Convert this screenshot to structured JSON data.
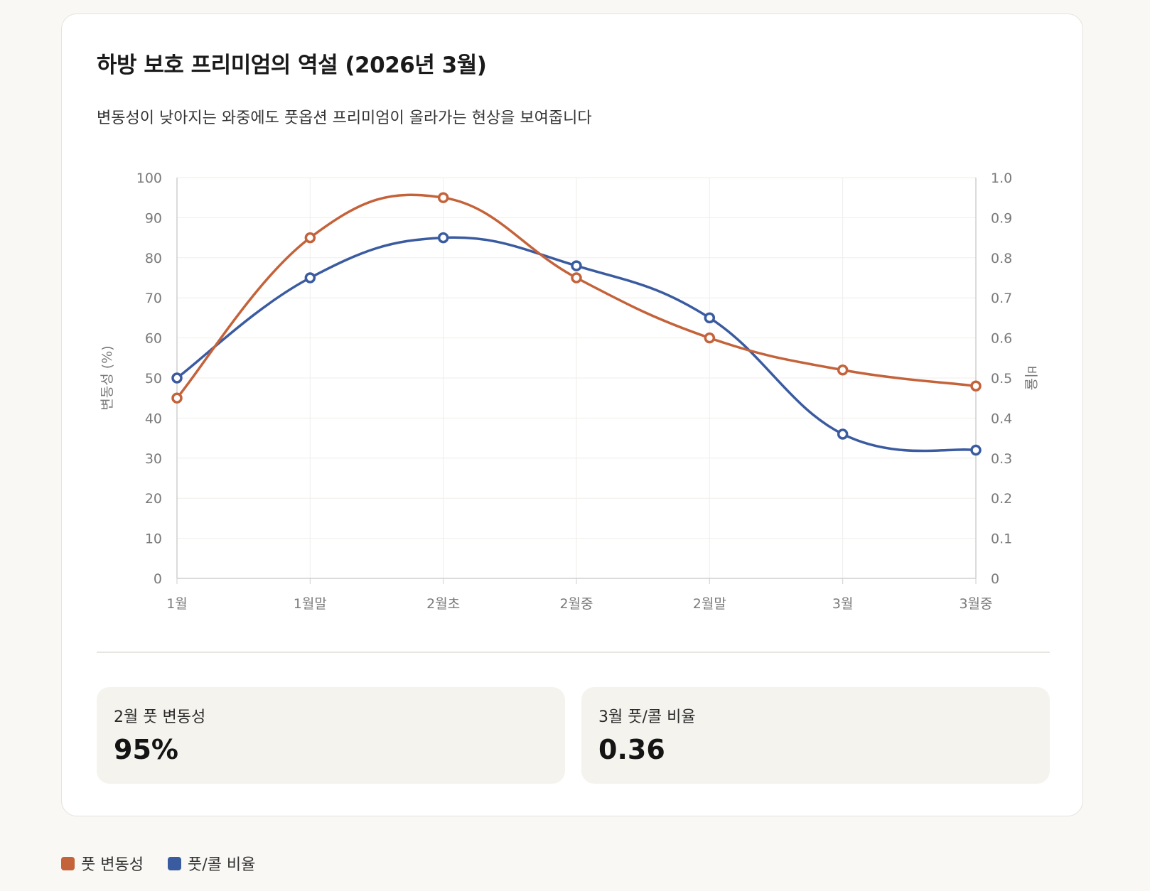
{
  "card": {
    "title": "하방 보호 프리미엄의 역설 (2026년 3월)",
    "subtitle": "변동성이 낮아지는 와중에도 풋옵션 프리미엄이 올라가는 현상을 보여줍니다"
  },
  "chart_data": {
    "type": "line",
    "categories": [
      "1월",
      "1월말",
      "2월초",
      "2월중",
      "2월말",
      "3월",
      "3월중"
    ],
    "series": [
      {
        "name": "풋 변동성",
        "axis": "left",
        "color": "#c4623a",
        "values": [
          45,
          85,
          95,
          75,
          60,
          52,
          48
        ]
      },
      {
        "name": "풋/콜 비율",
        "axis": "right",
        "color": "#3a5ba0",
        "values": [
          0.5,
          0.75,
          0.85,
          0.78,
          0.65,
          0.36,
          0.32
        ]
      }
    ],
    "y_left": {
      "label": "변동성 (%)",
      "ylim": [
        0,
        100
      ],
      "ticks": [
        "0",
        "10",
        "20",
        "30",
        "40",
        "50",
        "60",
        "70",
        "80",
        "90",
        "100"
      ]
    },
    "y_right": {
      "label": "비율",
      "ylim": [
        0,
        1.0
      ],
      "ticks": [
        "0",
        "0.1",
        "0.2",
        "0.3",
        "0.4",
        "0.5",
        "0.6",
        "0.7",
        "0.8",
        "0.9",
        "1.0"
      ]
    },
    "grid": true,
    "legend_position": "bottom-left"
  },
  "stats": [
    {
      "label": "2월 풋 변동성",
      "value": "95%"
    },
    {
      "label": "3월 풋/콜 비율",
      "value": "0.36"
    }
  ],
  "legend": [
    {
      "label": "풋 변동성",
      "color": "#c4623a"
    },
    {
      "label": "풋/콜 비율",
      "color": "#3a5ba0"
    }
  ]
}
